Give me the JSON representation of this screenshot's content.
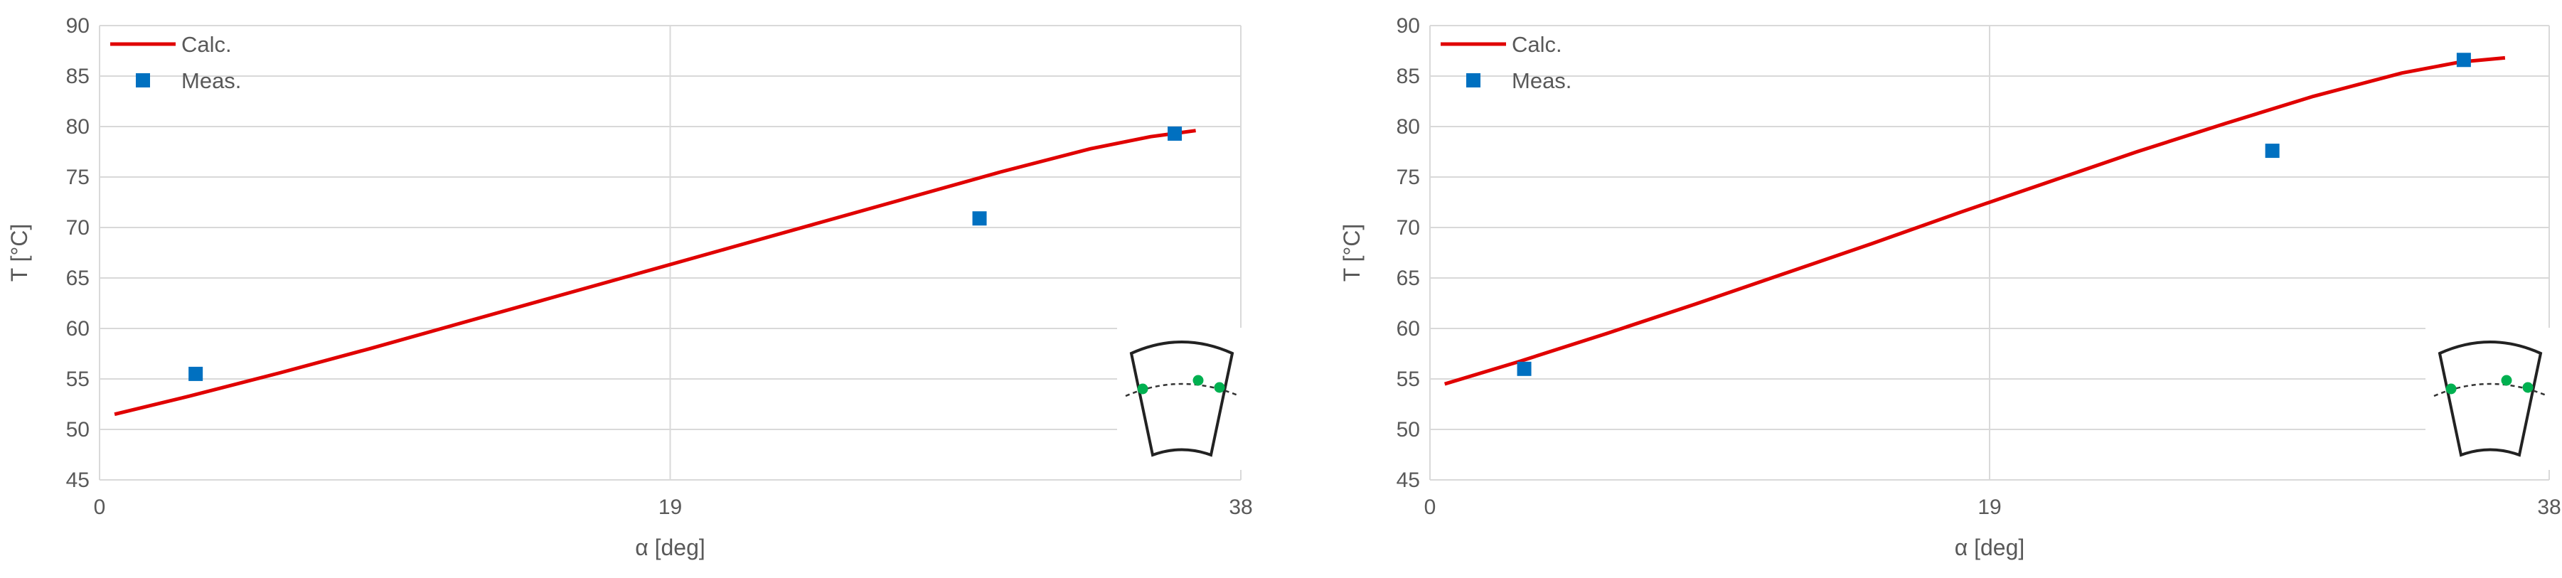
{
  "chart_data": [
    {
      "type": "line",
      "xlabel": "α [deg]",
      "ylabel": "T [°C]",
      "xlim": [
        0,
        38
      ],
      "ylim": [
        45,
        90
      ],
      "x_ticks": [
        "0",
        "19",
        "38"
      ],
      "y_ticks": [
        "45",
        "50",
        "55",
        "60",
        "65",
        "70",
        "75",
        "80",
        "85",
        "90"
      ],
      "grid": true,
      "legend_position": "top-left",
      "series": [
        {
          "name": "Calc.",
          "kind": "line",
          "color": "#e00000",
          "x": [
            0.5,
            3,
            6,
            9,
            12,
            15,
            18,
            21,
            24,
            27,
            30,
            33,
            35,
            36.5
          ],
          "y": [
            51.5,
            53.3,
            55.6,
            58.0,
            60.5,
            63.0,
            65.5,
            68.0,
            70.5,
            73.0,
            75.5,
            77.8,
            79.0,
            79.6
          ]
        },
        {
          "name": "Meas.",
          "kind": "marker",
          "color": "#0070c0",
          "x": [
            3.2,
            29.3,
            35.8
          ],
          "y": [
            55.5,
            70.9,
            79.3
          ]
        }
      ],
      "inset_icon": "sector-cross-section-icon"
    },
    {
      "type": "line",
      "xlabel": "α [deg]",
      "ylabel": "T [°C]",
      "xlim": [
        0,
        38
      ],
      "ylim": [
        45,
        90
      ],
      "x_ticks": [
        "0",
        "19",
        "38"
      ],
      "y_ticks": [
        "45",
        "50",
        "55",
        "60",
        "65",
        "70",
        "75",
        "80",
        "85",
        "90"
      ],
      "grid": true,
      "legend_position": "top-left",
      "series": [
        {
          "name": "Calc.",
          "kind": "line",
          "color": "#e00000",
          "x": [
            0.5,
            3,
            6,
            9,
            12,
            15,
            18,
            21,
            24,
            27,
            30,
            33,
            35,
            36.5
          ],
          "y": [
            54.5,
            56.7,
            59.5,
            62.4,
            65.4,
            68.4,
            71.5,
            74.5,
            77.5,
            80.3,
            83.0,
            85.3,
            86.4,
            86.8
          ]
        },
        {
          "name": "Meas.",
          "kind": "marker",
          "color": "#0070c0",
          "x": [
            3.2,
            28.6,
            35.1
          ],
          "y": [
            56.0,
            77.6,
            86.6
          ]
        }
      ],
      "inset_icon": "sector-cross-section-icon"
    }
  ]
}
